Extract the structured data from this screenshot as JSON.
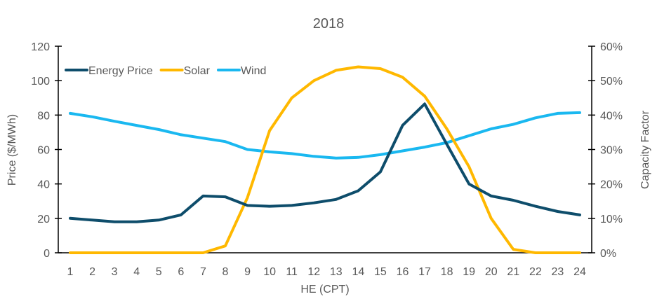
{
  "chart_data": {
    "type": "line",
    "title": "2018",
    "xlabel": "HE (CPT)",
    "ylabel": "Price ($/MWh)",
    "y2label": "Capacity Factor",
    "categories": [
      "1",
      "2",
      "3",
      "4",
      "5",
      "6",
      "7",
      "8",
      "9",
      "10",
      "11",
      "12",
      "13",
      "14",
      "15",
      "16",
      "17",
      "18",
      "19",
      "20",
      "21",
      "22",
      "23",
      "24"
    ],
    "ylim": [
      0,
      120
    ],
    "yticks": [
      "0",
      "20",
      "40",
      "60",
      "80",
      "100",
      "120"
    ],
    "y2lim": [
      0,
      60
    ],
    "y2ticks": [
      "0%",
      "10%",
      "20%",
      "30%",
      "40%",
      "50%",
      "60%"
    ],
    "legend_position": "top-left",
    "grid": false,
    "series": [
      {
        "name": "Energy Price",
        "axis": "left",
        "color": "#0e4d6b",
        "values": [
          20,
          19,
          18,
          18,
          19,
          22,
          33,
          32.5,
          27.5,
          27,
          27.5,
          29,
          31,
          36,
          47,
          74,
          86.5,
          63,
          40,
          33,
          30.5,
          27,
          24,
          22
        ]
      },
      {
        "name": "Solar",
        "axis": "right",
        "unit": "%",
        "color": "#ffb800",
        "values": [
          0,
          0,
          0,
          0,
          0,
          0,
          0,
          2,
          16,
          35.5,
          45,
          50,
          53,
          54,
          53.5,
          51,
          45.5,
          36,
          25,
          10,
          1,
          0,
          0,
          0
        ]
      },
      {
        "name": "Wind",
        "axis": "right",
        "unit": "%",
        "color": "#1ab8f0",
        "values": [
          40.5,
          39.5,
          38.2,
          37,
          35.8,
          34.3,
          33.3,
          32.3,
          30,
          29.3,
          28.8,
          28,
          27.5,
          27.7,
          28.5,
          29.6,
          30.7,
          32,
          34,
          36,
          37.3,
          39.2,
          40.5,
          40.7
        ]
      }
    ]
  }
}
